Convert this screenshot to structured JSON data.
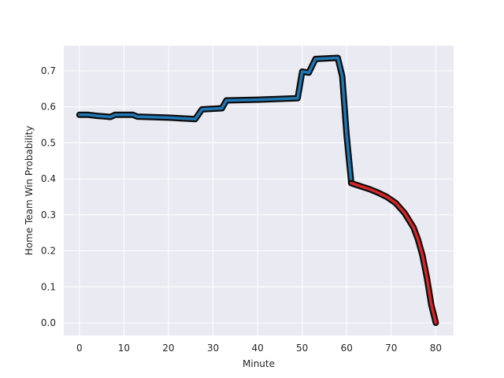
{
  "chart_data": {
    "type": "line",
    "xlabel": "Minute",
    "ylabel": "Home Team Win Probability",
    "xlim": [
      -3.5,
      84
    ],
    "ylim": [
      -0.035,
      0.77
    ],
    "grid": true,
    "x_ticks": [
      0,
      10,
      20,
      30,
      40,
      50,
      60,
      70,
      80
    ],
    "y_ticks": [
      0.0,
      0.1,
      0.2,
      0.3,
      0.4,
      0.5,
      0.6,
      0.7
    ],
    "x_tick_labels": [
      "0",
      "10",
      "20",
      "30",
      "40",
      "50",
      "60",
      "70",
      "80"
    ],
    "y_tick_labels": [
      "0.0",
      "0.1",
      "0.2",
      "0.3",
      "0.4",
      "0.5",
      "0.6",
      "0.7"
    ],
    "colors": {
      "background": "#eaeaf2",
      "grid": "#ffffff",
      "line_outline": "#0d0d0d",
      "series_blue": "#1f77b4",
      "series_red": "#d62728"
    },
    "series": [
      {
        "color": "#1f77b4",
        "x": [
          0,
          2,
          4,
          7,
          8,
          12,
          13,
          20,
          26,
          27.5,
          32,
          33,
          40,
          49,
          50,
          51.5,
          53,
          58,
          59,
          60,
          61
        ],
        "y": [
          0.578,
          0.578,
          0.575,
          0.572,
          0.578,
          0.578,
          0.573,
          0.57,
          0.566,
          0.593,
          0.596,
          0.618,
          0.62,
          0.624,
          0.698,
          0.695,
          0.733,
          0.736,
          0.685,
          0.52,
          0.392
        ]
      },
      {
        "color": "#d62728",
        "x": [
          61,
          63,
          65,
          67,
          69,
          71,
          73,
          75,
          76,
          77,
          78,
          79,
          80
        ],
        "y": [
          0.388,
          0.38,
          0.372,
          0.362,
          0.35,
          0.333,
          0.305,
          0.265,
          0.232,
          0.188,
          0.125,
          0.05,
          0.0
        ]
      }
    ]
  }
}
